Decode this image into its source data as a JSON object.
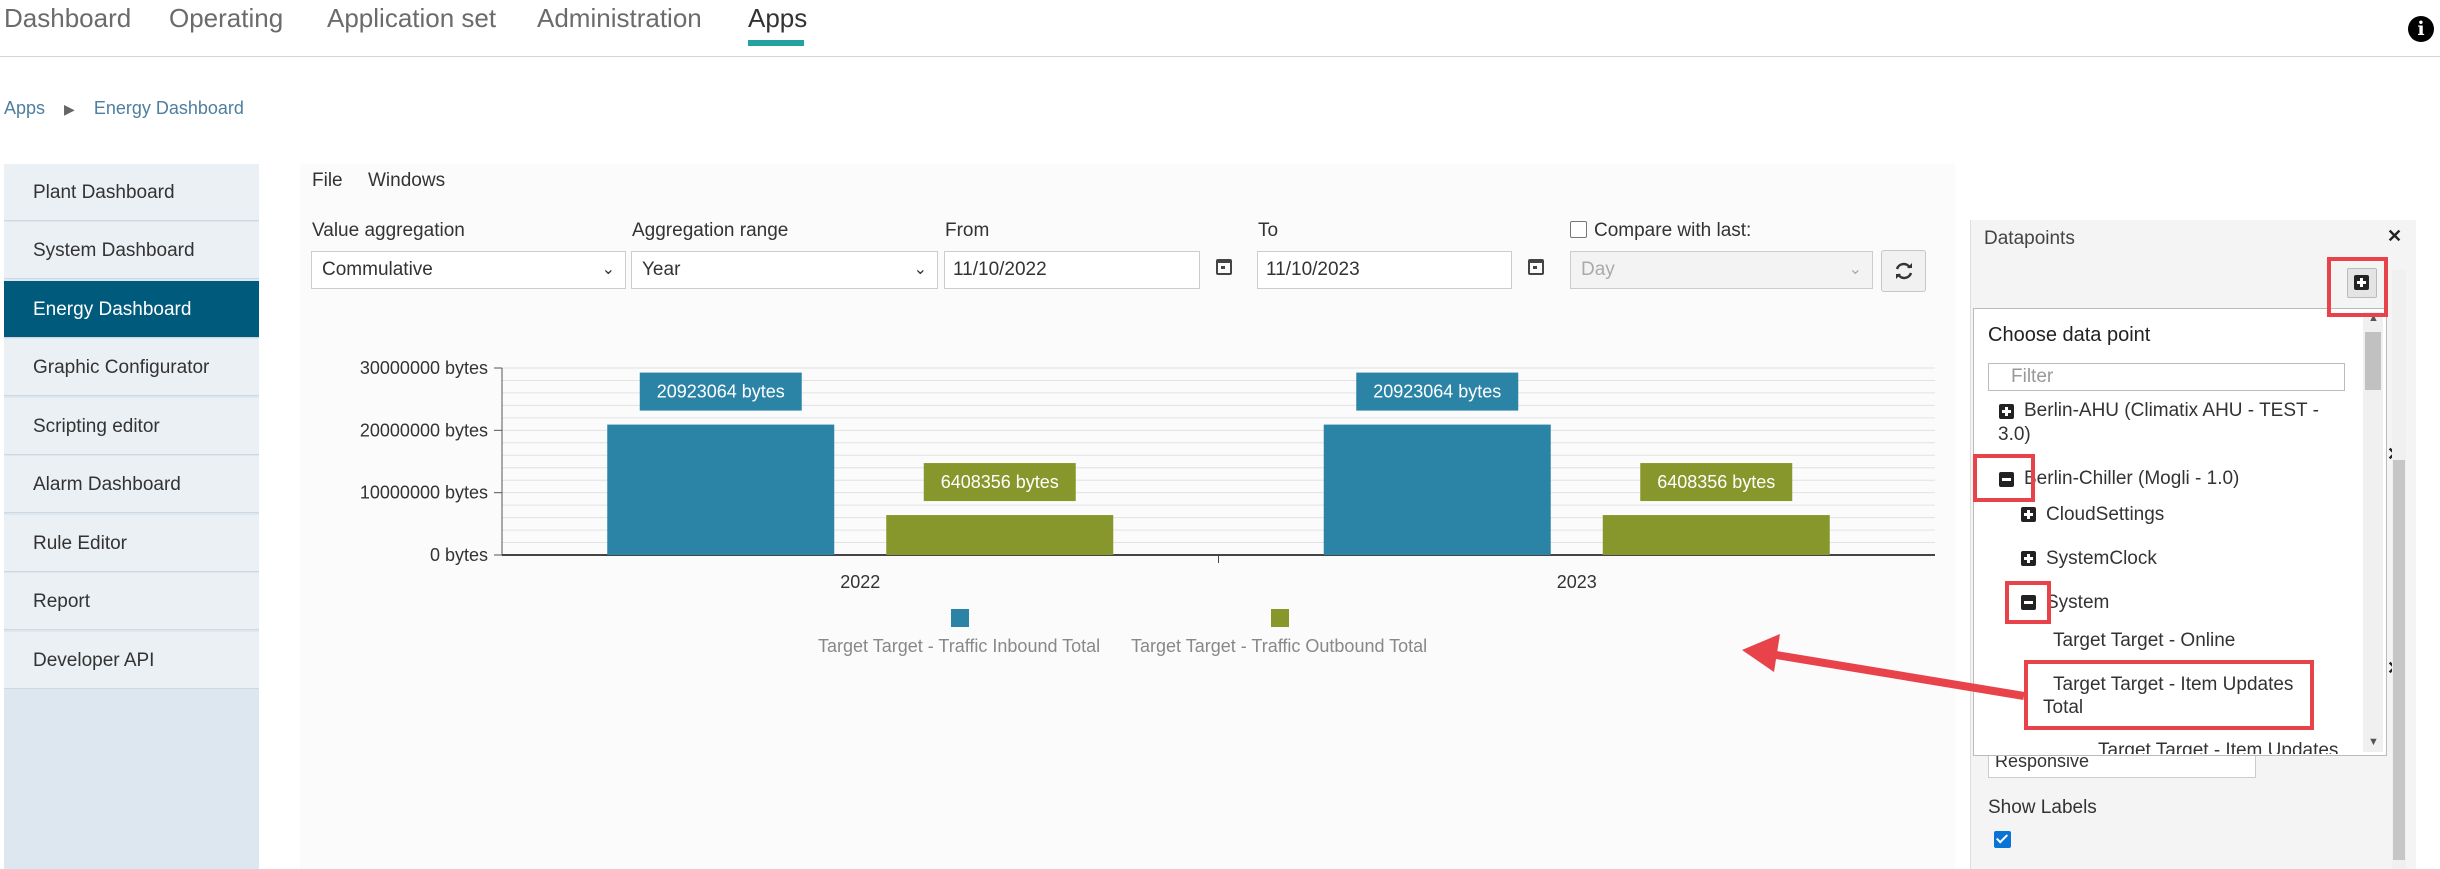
{
  "nav": {
    "tabs": [
      "Dashboard",
      "Operating",
      "Application set",
      "Administration",
      "Apps"
    ],
    "active": "Apps"
  },
  "breadcrumb": {
    "root": "Apps",
    "current": "Energy Dashboard"
  },
  "sidebar": {
    "items": [
      "Plant Dashboard",
      "System Dashboard",
      "Energy Dashboard",
      "Graphic Configurator",
      "Scripting editor",
      "Alarm Dashboard",
      "Rule Editor",
      "Report",
      "Developer API"
    ],
    "active": "Energy Dashboard"
  },
  "menu": {
    "file": "File",
    "windows": "Windows"
  },
  "filters": {
    "value_aggregation": {
      "label": "Value aggregation",
      "value": "Commulative"
    },
    "aggregation_range": {
      "label": "Aggregation range",
      "value": "Year"
    },
    "from": {
      "label": "From",
      "value": "11/10/2022"
    },
    "to": {
      "label": "To",
      "value": "11/10/2023"
    },
    "compare": {
      "label": "Compare with last:",
      "value": "Day",
      "checked": false
    }
  },
  "chart_data": {
    "type": "bar",
    "categories": [
      "2022",
      "2023"
    ],
    "series": [
      {
        "name": "Target Target - Traffic Inbound Total",
        "values": [
          20923064,
          20923064
        ],
        "color": "#2b84a6"
      },
      {
        "name": "Target Target - Traffic Outbound Total",
        "values": [
          6408356,
          6408356
        ],
        "color": "#88972b"
      }
    ],
    "data_labels": [
      [
        "20923064 bytes",
        "20923064 bytes"
      ],
      [
        "6408356 bytes",
        "6408356 bytes"
      ]
    ],
    "y_ticks": [
      0,
      10000000,
      20000000,
      30000000
    ],
    "y_tick_labels": [
      "0 bytes",
      "10000000 bytes",
      "20000000 bytes",
      "30000000 bytes"
    ],
    "ylim": [
      0,
      30000000
    ],
    "title": "",
    "xlabel": "",
    "ylabel": "",
    "grid": true,
    "legend": "bottom"
  },
  "datapoints": {
    "title": "Datapoints",
    "dropdown": {
      "title": "Choose data point",
      "filter_placeholder": "Filter",
      "nodes": {
        "berlin_ahu": "Berlin-AHU (Climatix AHU - TEST -",
        "berlin_ahu_cont": "3.0)",
        "berlin_chiller": "Berlin-Chiller (Mogli - 1.0)",
        "cloud_settings": "CloudSettings",
        "system_clock": "SystemClock",
        "system": "System",
        "online": "Target Target - Online",
        "item_updates_total": "Target Target - Item Updates",
        "item_updates_total_cont": "Total",
        "item_updates": "Target Target - Item Updates"
      }
    },
    "behind": {
      "responsive": "Responsive",
      "show_labels": "Show Labels"
    }
  },
  "colors": {
    "accent": "#23a3a0",
    "active_nav": "#005a7c",
    "highlight": "#e8434a"
  }
}
